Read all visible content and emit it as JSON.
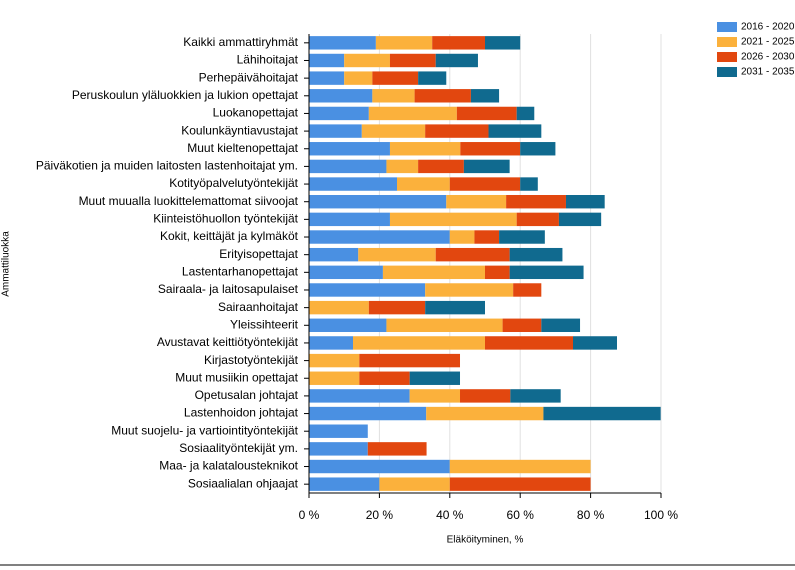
{
  "chart_data": {
    "type": "stacked-barh",
    "ylabel": "Ammattiluokka",
    "xlabel": "Eläköityminen, %",
    "categories": [
      "Kaikki ammattiryhmät",
      "Lähihoitajat",
      "Perhepäivähoitajat",
      "Peruskoulun yläluokkien ja lukion opettajat",
      "Luokanopettajat",
      "Koulunkäyntiavustajat",
      "Muut kieltenopettajat",
      "Päiväkotien ja muiden laitosten lastenhoitajat ym.",
      "Kotityöpalvelutyöntekijät",
      "Muut muualla luokittelemattomat siivoojat",
      "Kiinteistöhuollon työntekijät",
      "Kokit, keittäjät ja kylmäköt",
      "Erityisopettajat",
      "Lastentarhanopettajat",
      "Sairaala- ja laitosapulaiset",
      "Sairaanhoitajat",
      "Yleissihteerit",
      "Avustavat keittiötyöntekijät",
      "Kirjastotyöntekijät",
      "Muut musiikin opettajat",
      "Opetusalan johtajat",
      "Lastenhoidon johtajat",
      "Muut suojelu- ja vartiointityöntekijät",
      "Sosiaalityöntekijät ym.",
      "Maa- ja kalatalousteknikot",
      "Sosiaalialan ohjaajat"
    ],
    "series": [
      {
        "name": "2016 - 2020",
        "color": "#4a90e2",
        "values": [
          19,
          10,
          10,
          18,
          17,
          15,
          23,
          22,
          25,
          39,
          23,
          40,
          14,
          21,
          33,
          0,
          22,
          12.5,
          0,
          0,
          28.6,
          33.3,
          16.7,
          16.7,
          40,
          20
        ]
      },
      {
        "name": "2021 - 2025",
        "color": "#fbb13c",
        "values": [
          16,
          13,
          8,
          12,
          25,
          18,
          20,
          9,
          15,
          17,
          36,
          7,
          22,
          29,
          25,
          17,
          33,
          37.5,
          14.3,
          14.3,
          14.3,
          33.3,
          0,
          0,
          40,
          20
        ]
      },
      {
        "name": "2026 - 2030",
        "color": "#e2470f",
        "values": [
          15,
          13,
          13,
          16,
          17,
          18,
          17,
          13,
          20,
          17,
          12,
          7,
          21,
          7,
          8,
          16,
          11,
          25,
          28.6,
          14.3,
          14.3,
          0,
          0,
          16.7,
          0,
          40
        ]
      },
      {
        "name": "2031 - 2035",
        "color": "#106a8f",
        "values": [
          10,
          12,
          8,
          8,
          5,
          15,
          10,
          13,
          5,
          11,
          12,
          13,
          15,
          21,
          0,
          17,
          11,
          12.5,
          0,
          14.3,
          14.3,
          33.3,
          0,
          0,
          0,
          0
        ]
      }
    ],
    "xlim": [
      0,
      100
    ],
    "xticks": [
      {
        "value": 0,
        "label": "0 %"
      },
      {
        "value": 20,
        "label": "20 %"
      },
      {
        "value": 40,
        "label": "40 %"
      },
      {
        "value": 60,
        "label": "60 %"
      },
      {
        "value": 80,
        "label": "80 %"
      },
      {
        "value": 100,
        "label": "100 %"
      }
    ],
    "grid": true,
    "legend": "top-right"
  }
}
